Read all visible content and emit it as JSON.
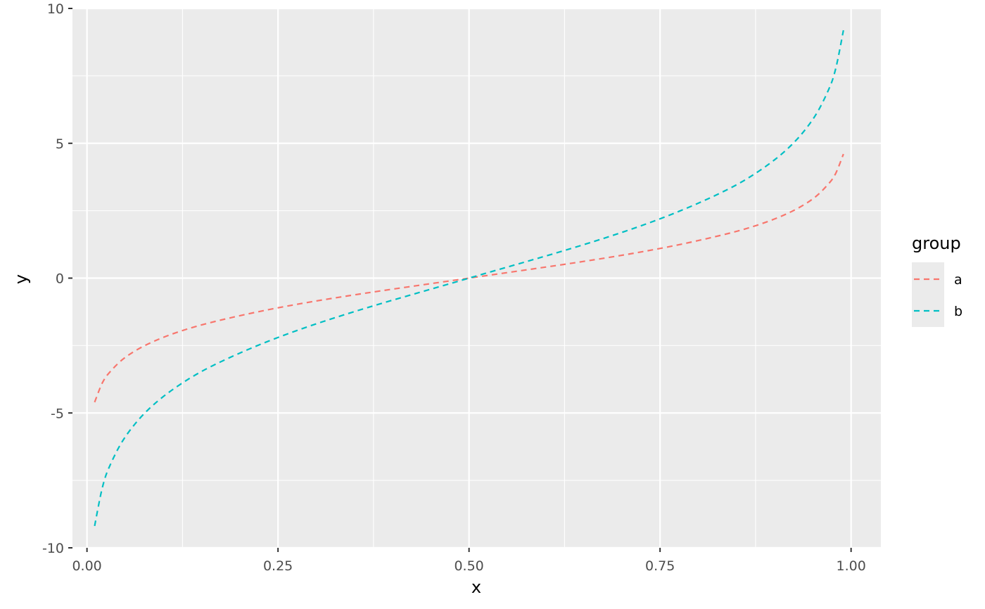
{
  "chart_data": {
    "type": "line",
    "xlabel": "x",
    "ylabel": "y",
    "xlim": [
      -0.019,
      1.039
    ],
    "ylim": [
      -10.0,
      10.0
    ],
    "x_ticks": [
      0.0,
      0.25,
      0.5,
      0.75,
      1.0
    ],
    "x_tick_labels": [
      "0.00",
      "0.25",
      "0.50",
      "0.75",
      "1.00"
    ],
    "y_ticks": [
      -10,
      -5,
      0,
      5,
      10
    ],
    "y_tick_labels": [
      "-10",
      "-5",
      "0",
      "5",
      "10"
    ],
    "grid": true,
    "legend": {
      "title": "group",
      "position": "right"
    },
    "series": [
      {
        "name": "a",
        "color": "#F8766D",
        "linestyle": "dashed",
        "x": [
          0.01,
          0.02,
          0.03,
          0.05,
          0.08,
          0.12,
          0.17,
          0.25,
          0.35,
          0.5,
          0.65,
          0.75,
          0.83,
          0.88,
          0.92,
          0.95,
          0.97,
          0.98,
          0.99
        ],
        "y": [
          -4.6,
          -3.89,
          -3.48,
          -2.94,
          -2.44,
          -1.99,
          -1.59,
          -1.1,
          -0.62,
          0.0,
          0.62,
          1.1,
          1.59,
          1.99,
          2.44,
          2.94,
          3.48,
          3.89,
          4.6
        ]
      },
      {
        "name": "b",
        "color": "#00BFC4",
        "linestyle": "dashed",
        "x": [
          0.01,
          0.02,
          0.03,
          0.05,
          0.08,
          0.12,
          0.17,
          0.25,
          0.35,
          0.5,
          0.65,
          0.75,
          0.83,
          0.88,
          0.92,
          0.95,
          0.97,
          0.98,
          0.99
        ],
        "y": [
          -9.19,
          -7.78,
          -6.95,
          -5.89,
          -4.88,
          -3.98,
          -3.17,
          -2.2,
          -1.24,
          0.0,
          1.24,
          2.2,
          3.17,
          3.98,
          4.88,
          5.89,
          6.95,
          7.78,
          9.19
        ]
      }
    ]
  }
}
